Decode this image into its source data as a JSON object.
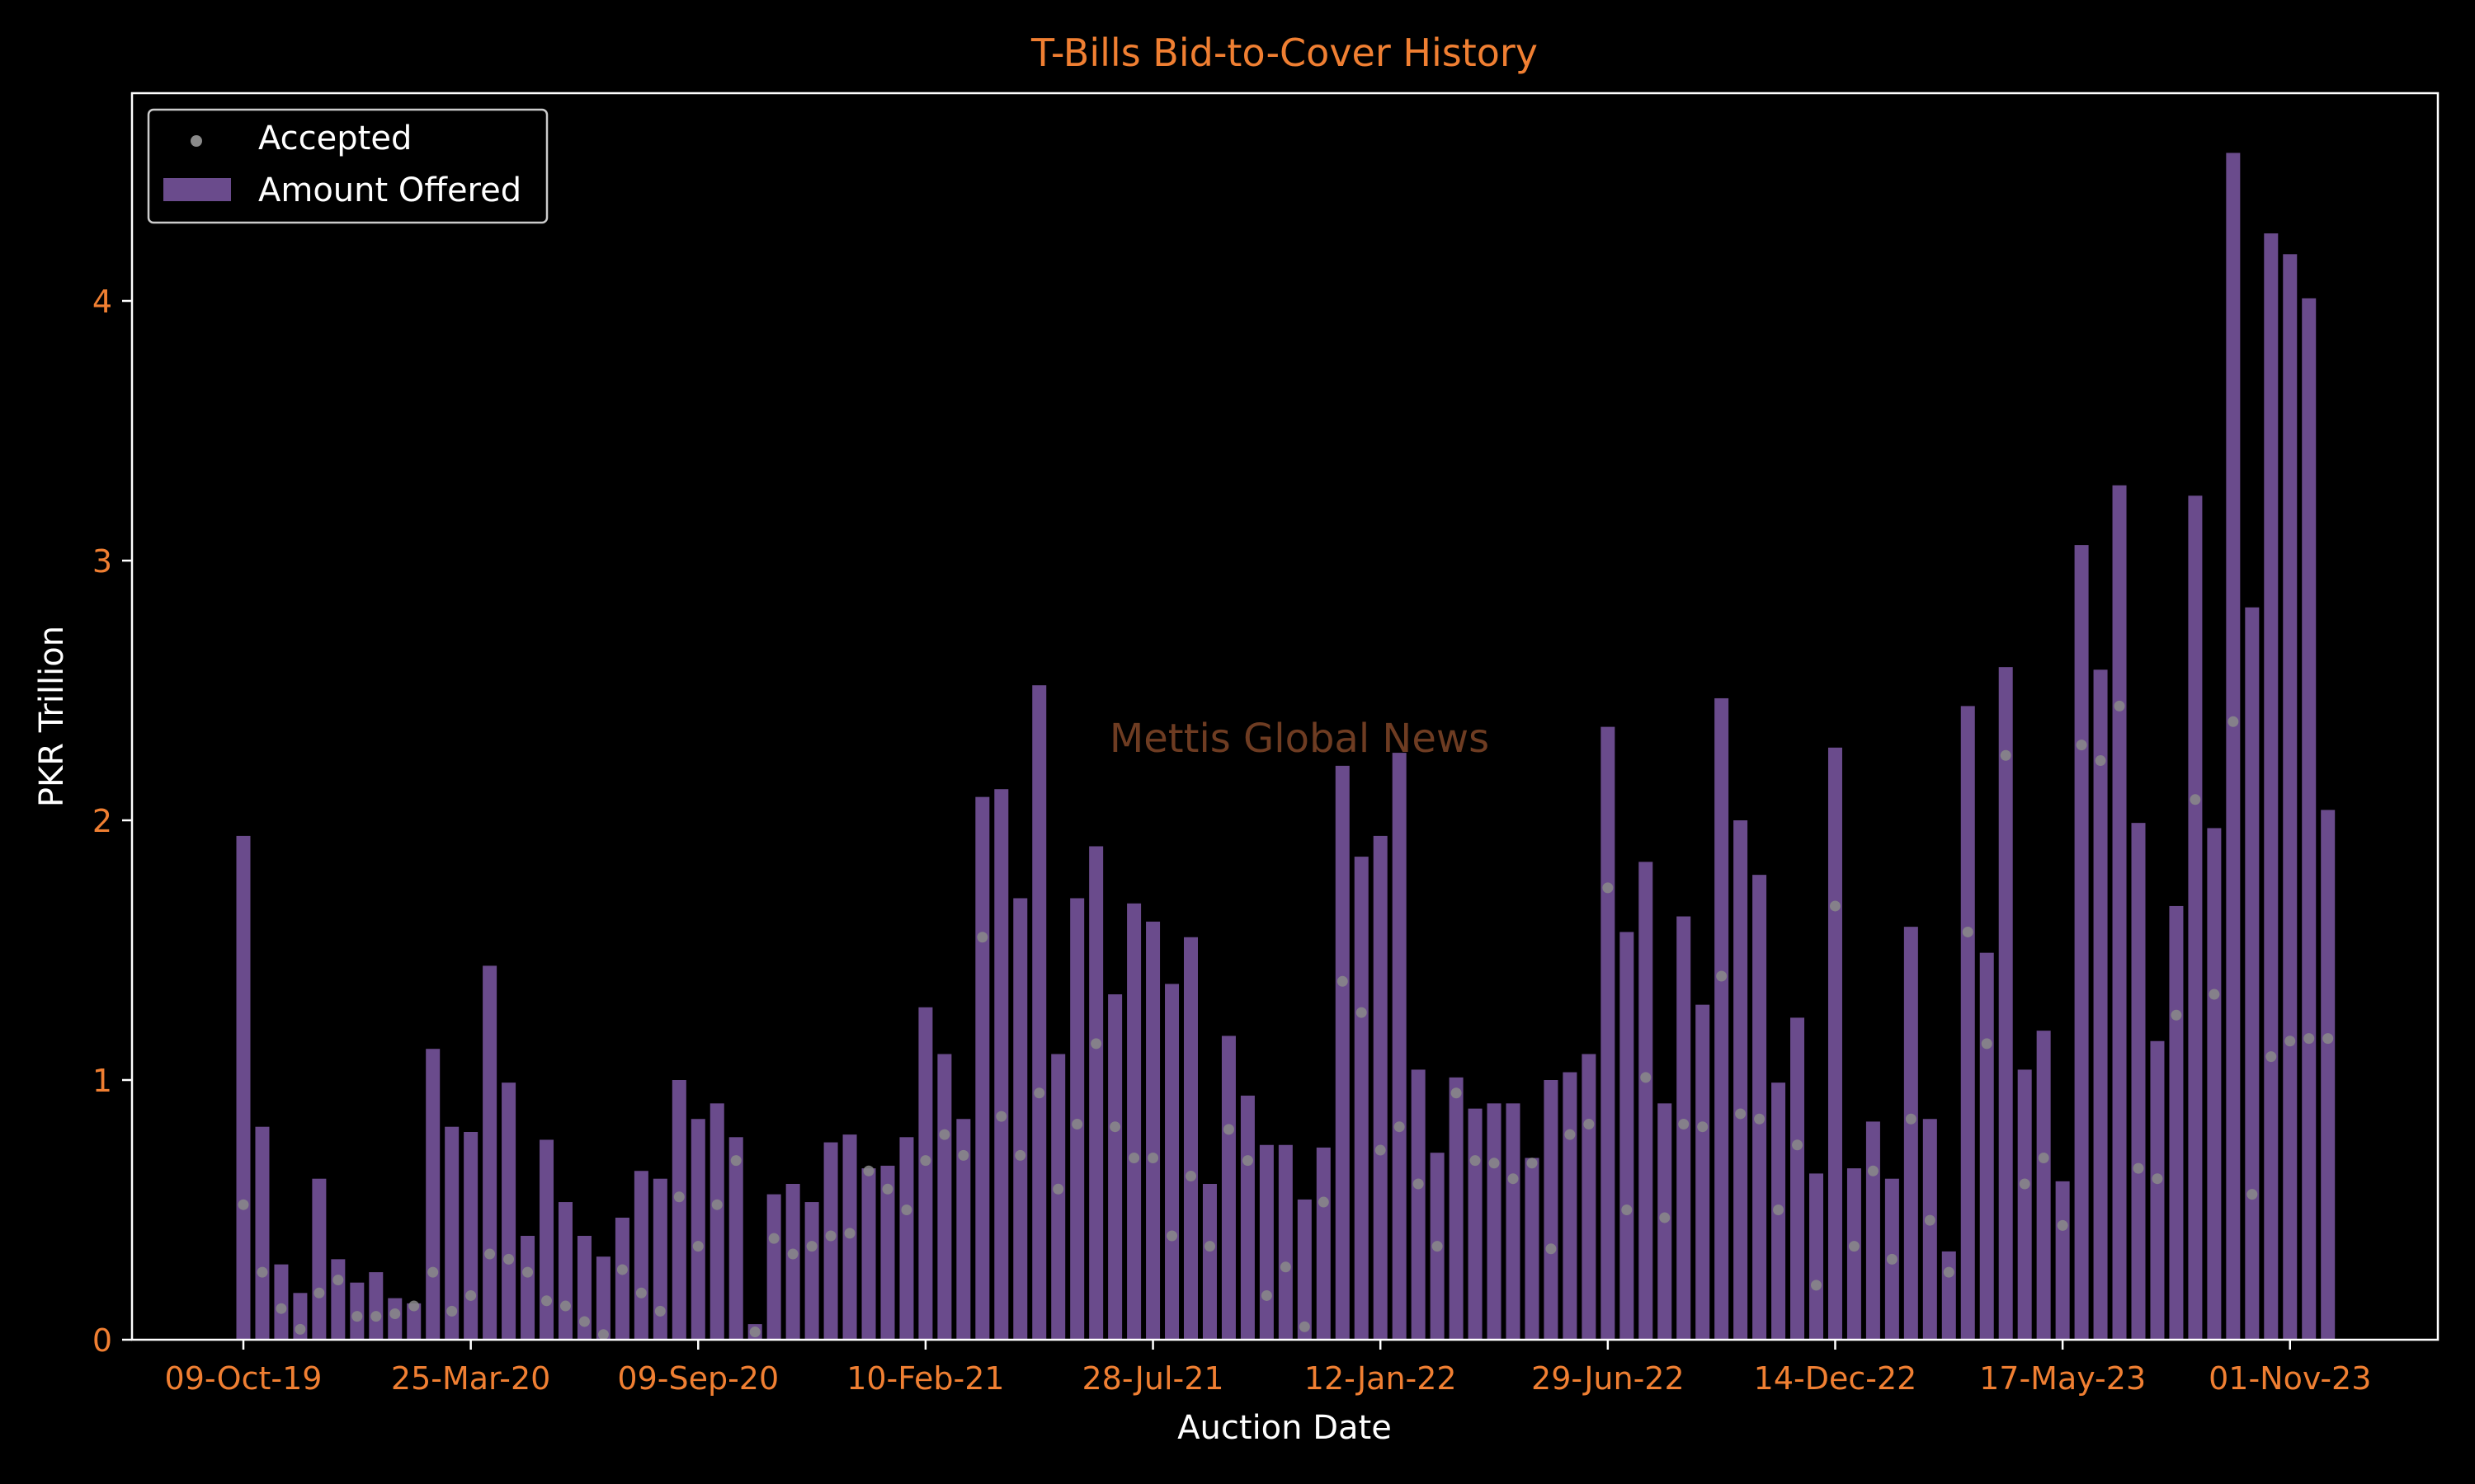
{
  "colors": {
    "background": "#000000",
    "title": "#F07F32",
    "tick_label": "#F07F32",
    "axis_label": "#FFFFFF",
    "bar": "#6A4B8C",
    "point": "#8A8A8A",
    "frame": "#FFFFFF",
    "watermark": "#6E3C22"
  },
  "chart_data": {
    "type": "bar",
    "title": "T-Bills Bid-to-Cover History",
    "xlabel": "Auction Date",
    "ylabel": "PKR Trillion",
    "ylim": [
      0,
      4.8
    ],
    "yticks": [
      0,
      1,
      2,
      3,
      4
    ],
    "xtick_labels": [
      "09-Oct-19",
      "25-Mar-20",
      "09-Sep-20",
      "10-Feb-21",
      "28-Jul-21",
      "12-Jan-22",
      "29-Jun-22",
      "14-Dec-22",
      "17-May-23",
      "01-Nov-23"
    ],
    "xtick_label_indices": [
      0,
      12,
      24,
      36,
      48,
      60,
      72,
      84,
      96,
      108
    ],
    "grid": false,
    "legend_position": "upper-left",
    "watermark": "Mettis Global News",
    "series": [
      {
        "name": "Amount Offered",
        "kind": "bar",
        "values": [
          1.94,
          0.82,
          0.29,
          0.18,
          0.62,
          0.31,
          0.22,
          0.26,
          0.16,
          0.14,
          1.12,
          0.82,
          0.8,
          1.44,
          0.99,
          0.4,
          0.77,
          0.53,
          0.4,
          0.32,
          0.47,
          0.65,
          0.62,
          1.0,
          0.85,
          0.91,
          0.78,
          0.06,
          0.56,
          0.6,
          0.53,
          0.76,
          0.79,
          0.66,
          0.67,
          0.78,
          1.28,
          1.1,
          0.85,
          2.09,
          2.12,
          1.7,
          2.52,
          1.1,
          1.7,
          1.9,
          1.33,
          1.68,
          1.61,
          1.37,
          1.55,
          0.6,
          1.17,
          0.94,
          0.75,
          0.75,
          0.54,
          0.74,
          2.21,
          1.86,
          1.94,
          2.26,
          1.04,
          0.72,
          1.01,
          0.89,
          0.91,
          0.91,
          0.7,
          1.0,
          1.03,
          1.1,
          2.36,
          1.57,
          1.84,
          0.91,
          1.63,
          1.29,
          2.47,
          2.0,
          1.79,
          0.99,
          1.24,
          0.64,
          2.28,
          0.66,
          0.84,
          0.62,
          1.59,
          0.85,
          0.34,
          2.44,
          1.49,
          2.59,
          1.04,
          1.19,
          0.61,
          3.06,
          2.58,
          3.29,
          1.99,
          1.15,
          1.67,
          3.25,
          1.97,
          4.57,
          2.82,
          4.26,
          4.18,
          4.01,
          2.04
        ]
      },
      {
        "name": "Accepted",
        "kind": "scatter",
        "values": [
          0.52,
          0.26,
          0.12,
          0.04,
          0.18,
          0.23,
          0.09,
          0.09,
          0.1,
          0.13,
          0.26,
          0.11,
          0.17,
          0.33,
          0.31,
          0.26,
          0.15,
          0.13,
          0.07,
          0.02,
          0.27,
          0.18,
          0.11,
          0.55,
          0.36,
          0.52,
          0.69,
          0.03,
          0.39,
          0.33,
          0.36,
          0.4,
          0.41,
          0.65,
          0.58,
          0.5,
          0.69,
          0.79,
          0.71,
          1.55,
          0.86,
          0.71,
          0.95,
          0.58,
          0.83,
          1.14,
          0.82,
          0.7,
          0.7,
          0.4,
          0.63,
          0.36,
          0.81,
          0.69,
          0.17,
          0.28,
          0.05,
          0.53,
          1.38,
          1.26,
          0.73,
          0.82,
          0.6,
          0.36,
          0.95,
          0.69,
          0.68,
          0.62,
          0.68,
          0.35,
          0.79,
          0.83,
          1.74,
          0.5,
          1.01,
          0.47,
          0.83,
          0.82,
          1.4,
          0.87,
          0.85,
          0.5,
          0.75,
          0.21,
          1.67,
          0.36,
          0.65,
          0.31,
          0.85,
          0.46,
          0.26,
          1.57,
          1.14,
          2.25,
          0.6,
          0.7,
          0.44,
          2.29,
          2.23,
          2.44,
          0.66,
          0.62,
          1.25,
          2.08,
          1.33,
          2.38,
          0.56,
          1.09,
          1.15,
          1.16,
          1.16
        ]
      }
    ]
  }
}
